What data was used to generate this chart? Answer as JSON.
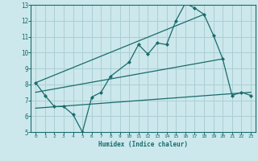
{
  "xlabel": "Humidex (Indice chaleur)",
  "bg_color": "#cce8ec",
  "grid_color": "#aacfd4",
  "line_color": "#1a6b6b",
  "xlim": [
    -0.5,
    23.5
  ],
  "ylim": [
    5,
    13
  ],
  "xticks": [
    0,
    1,
    2,
    3,
    4,
    5,
    6,
    7,
    8,
    9,
    10,
    11,
    12,
    13,
    14,
    15,
    16,
    17,
    18,
    19,
    20,
    21,
    22,
    23
  ],
  "yticks": [
    5,
    6,
    7,
    8,
    9,
    10,
    11,
    12,
    13
  ],
  "series1_x": [
    0,
    1,
    2,
    3,
    4,
    5,
    6,
    7,
    8,
    10,
    11,
    12,
    13,
    14,
    15,
    16,
    17,
    18,
    19,
    20,
    21,
    22,
    23
  ],
  "series1_y": [
    8.1,
    7.3,
    6.6,
    6.6,
    6.1,
    5.0,
    7.2,
    7.5,
    8.5,
    9.4,
    10.5,
    9.9,
    10.6,
    10.5,
    12.0,
    13.1,
    12.8,
    12.4,
    11.1,
    9.6,
    7.3,
    7.5,
    7.3
  ],
  "line1_x": [
    0,
    18
  ],
  "line1_y": [
    8.1,
    12.4
  ],
  "line2_x": [
    0,
    20
  ],
  "line2_y": [
    7.5,
    9.6
  ],
  "line3_x": [
    0,
    23
  ],
  "line3_y": [
    6.5,
    7.5
  ]
}
